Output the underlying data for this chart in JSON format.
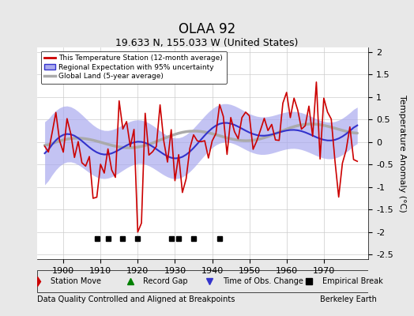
{
  "title": "OLAA 92",
  "subtitle": "19.633 N, 155.033 W (United States)",
  "xlabel_bottom": "Data Quality Controlled and Aligned at Breakpoints",
  "xlabel_right": "Berkeley Earth",
  "ylabel": "Temperature Anomaly (°C)",
  "xlim": [
    1893,
    1982
  ],
  "ylim": [
    -2.6,
    2.1
  ],
  "yticks": [
    -2.5,
    -2,
    -1.5,
    -1,
    -0.5,
    0,
    0.5,
    1,
    1.5,
    2
  ],
  "xticks": [
    1900,
    1910,
    1920,
    1930,
    1940,
    1950,
    1960,
    1970
  ],
  "bg_color": "#e8e8e8",
  "plot_bg_color": "#ffffff",
  "grid_color": "#cccccc",
  "station_color": "#cc0000",
  "regional_color": "#3333cc",
  "regional_fill_color": "#aaaaee",
  "global_color": "#aaaaaa",
  "empirical_breaks": [
    1909,
    1912,
    1916,
    1920,
    1929,
    1931,
    1935,
    1942
  ],
  "record_gaps": [],
  "station_moves": [],
  "obs_changes": [],
  "legend_labels": [
    "This Temperature Station (12-month average)",
    "Regional Expectation with 95% uncertainty",
    "Global Land (5-year average)"
  ]
}
